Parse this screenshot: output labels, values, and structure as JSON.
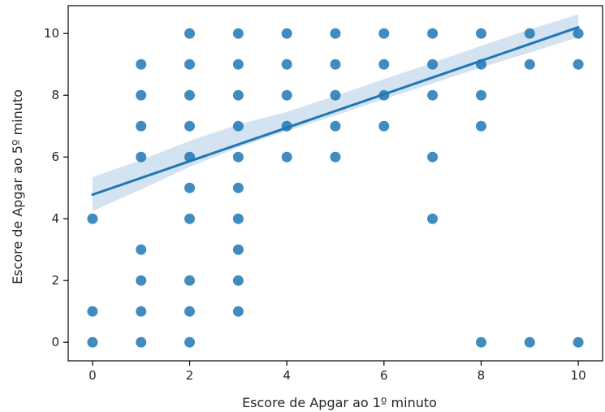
{
  "chart_data": {
    "type": "scatter",
    "title": "",
    "xlabel": "Escore de Apgar ao 1º minuto",
    "ylabel": "Escore de Apgar ao 5º minuto",
    "xlim": [
      -0.5,
      10.5
    ],
    "ylim": [
      -0.6,
      10.9
    ],
    "xticks": [
      0,
      2,
      4,
      6,
      8,
      10
    ],
    "yticks": [
      0,
      2,
      4,
      6,
      8,
      10
    ],
    "grid": false,
    "legend": "none",
    "color": "#1f77b4",
    "band_color": "#c6d9ec",
    "points": [
      [
        0,
        0
      ],
      [
        0,
        1
      ],
      [
        0,
        4
      ],
      [
        1,
        0
      ],
      [
        1,
        1
      ],
      [
        1,
        2
      ],
      [
        1,
        3
      ],
      [
        1,
        6
      ],
      [
        1,
        7
      ],
      [
        1,
        8
      ],
      [
        1,
        9
      ],
      [
        2,
        0
      ],
      [
        2,
        1
      ],
      [
        2,
        2
      ],
      [
        2,
        4
      ],
      [
        2,
        5
      ],
      [
        2,
        6
      ],
      [
        2,
        7
      ],
      [
        2,
        8
      ],
      [
        2,
        9
      ],
      [
        2,
        10
      ],
      [
        3,
        1
      ],
      [
        3,
        2
      ],
      [
        3,
        3
      ],
      [
        3,
        4
      ],
      [
        3,
        5
      ],
      [
        3,
        6
      ],
      [
        3,
        7
      ],
      [
        3,
        8
      ],
      [
        3,
        9
      ],
      [
        3,
        10
      ],
      [
        4,
        6
      ],
      [
        4,
        7
      ],
      [
        4,
        8
      ],
      [
        4,
        9
      ],
      [
        4,
        10
      ],
      [
        5,
        6
      ],
      [
        5,
        7
      ],
      [
        5,
        8
      ],
      [
        5,
        9
      ],
      [
        5,
        10
      ],
      [
        6,
        7
      ],
      [
        6,
        8
      ],
      [
        6,
        9
      ],
      [
        6,
        10
      ],
      [
        7,
        4
      ],
      [
        7,
        6
      ],
      [
        7,
        8
      ],
      [
        7,
        9
      ],
      [
        7,
        10
      ],
      [
        8,
        0
      ],
      [
        8,
        7
      ],
      [
        8,
        8
      ],
      [
        8,
        9
      ],
      [
        8,
        10
      ],
      [
        9,
        0
      ],
      [
        9,
        9
      ],
      [
        9,
        10
      ],
      [
        10,
        0
      ],
      [
        10,
        9
      ],
      [
        10,
        10
      ]
    ],
    "regression": {
      "x": [
        0,
        10
      ],
      "y": [
        4.78,
        10.2
      ]
    },
    "confidence_band": {
      "x": [
        0,
        1,
        2,
        3,
        4,
        5,
        6,
        7,
        8,
        9,
        10
      ],
      "lower": [
        4.25,
        4.95,
        5.68,
        6.31,
        6.84,
        7.35,
        7.87,
        8.38,
        8.9,
        9.38,
        9.88
      ],
      "upper": [
        5.35,
        5.9,
        6.52,
        7.05,
        7.46,
        7.98,
        8.52,
        9.05,
        9.6,
        10.13,
        10.62
      ]
    }
  }
}
